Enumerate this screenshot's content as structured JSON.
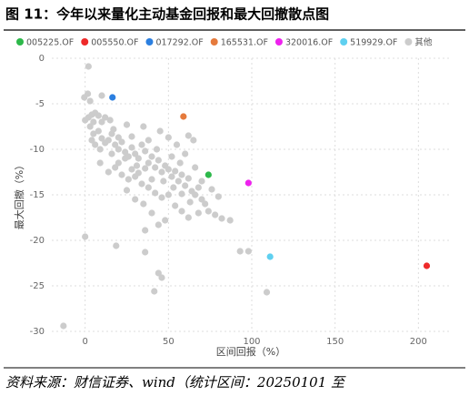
{
  "chart_data": {
    "type": "scatter",
    "title": "图 11：今年以来量化主动基金回报和最大回撤散点图",
    "x_label": "区间回报（%）",
    "y_label": "最大回撤（%）",
    "source": "资料来源：财信证券、wind（统计区间：20250101 至",
    "xlim": [
      -20,
      220
    ],
    "ylim": [
      -30,
      0
    ],
    "xticks": [
      0,
      50,
      100,
      150,
      200
    ],
    "yticks": [
      0,
      -5,
      -10,
      -15,
      -20,
      -25,
      -30
    ],
    "grid": true,
    "series": [
      {
        "name": "005225.OF",
        "color": "#2db84a",
        "x": [
          74
        ],
        "y": [
          -12.8
        ]
      },
      {
        "name": "005550.OF",
        "color": "#ee2a2a",
        "x": [
          205
        ],
        "y": [
          -22.8
        ]
      },
      {
        "name": "017292.OF",
        "color": "#2b7fe0",
        "x": [
          16.4
        ],
        "y": [
          -4.3
        ]
      },
      {
        "name": "165531.OF",
        "color": "#e57a3c",
        "x": [
          59
        ],
        "y": [
          -6.4
        ]
      },
      {
        "name": "320016.OF",
        "color": "#ee22ee",
        "x": [
          98
        ],
        "y": [
          -13.7
        ]
      },
      {
        "name": "519929.OF",
        "color": "#5fd0f0",
        "x": [
          111
        ],
        "y": [
          -21.8
        ]
      },
      {
        "name": "其他",
        "color": "#cccccc",
        "x": [
          -13,
          2,
          0,
          18.6,
          36,
          44,
          46,
          41.5,
          109,
          93,
          98,
          82,
          78,
          74,
          87,
          -0.5,
          1.6,
          10,
          3,
          0,
          2,
          4,
          5,
          6,
          8,
          10,
          12,
          3,
          5,
          8,
          10,
          12,
          14,
          16,
          18,
          20,
          22,
          24,
          26,
          28,
          30,
          32,
          34,
          36,
          38,
          40,
          42,
          44,
          46,
          48,
          50,
          52,
          54,
          56,
          58,
          60,
          62,
          64,
          66,
          68,
          70,
          72,
          6,
          9,
          14,
          18,
          22,
          26,
          30,
          34,
          38,
          42,
          46,
          50,
          54,
          58,
          62,
          40,
          35,
          30,
          44,
          48,
          36,
          25,
          20,
          16,
          28,
          32,
          36,
          40,
          55,
          60,
          62,
          65,
          50,
          45,
          35,
          25,
          15,
          52,
          57,
          66,
          70,
          76,
          80,
          24,
          31,
          38,
          43,
          47,
          9,
          4,
          58,
          53,
          28,
          20,
          17,
          63,
          68
        ],
        "y": [
          -29.4,
          -0.9,
          -19.6,
          -20.6,
          -21.3,
          -23.6,
          -24.1,
          -25.6,
          -25.7,
          -21.2,
          -21.2,
          -17.6,
          -17.2,
          -16.8,
          -17.8,
          -4.3,
          -3.9,
          -4.1,
          -4.7,
          -6.8,
          -6.5,
          -6.2,
          -7,
          -6,
          -6.3,
          -7,
          -6.5,
          -7.5,
          -8.3,
          -8,
          -8.8,
          -9.3,
          -9,
          -8.3,
          -9.5,
          -10,
          -9.2,
          -10.3,
          -10.8,
          -9.8,
          -10.5,
          -11,
          -9.5,
          -10.2,
          -11.5,
          -10.8,
          -12,
          -11.2,
          -12.5,
          -11.8,
          -12.2,
          -13,
          -12.4,
          -13.5,
          -12.8,
          -14,
          -13.2,
          -14.6,
          -15,
          -14.2,
          -15.5,
          -16,
          -9.5,
          -11.5,
          -12.5,
          -12,
          -12.8,
          -13.3,
          -13,
          -13.8,
          -14.2,
          -14.8,
          -15.3,
          -15,
          -16.2,
          -16.8,
          -17.5,
          -17,
          -16,
          -15.5,
          -18.3,
          -17.8,
          -18.9,
          -14.5,
          -11.5,
          -10.5,
          -12.2,
          -12.6,
          -12.1,
          -13.3,
          -9.5,
          -10.5,
          -8.5,
          -9,
          -8.7,
          -8,
          -7.5,
          -7.3,
          -6.8,
          -10.8,
          -11.5,
          -12,
          -13.5,
          -14.4,
          -15.2,
          -11,
          -11.8,
          -9,
          -10,
          -13.5,
          -10,
          -9,
          -14.9,
          -14.2,
          -8.6,
          -8.7,
          -7.8,
          -15.8,
          -17
        ]
      }
    ]
  }
}
